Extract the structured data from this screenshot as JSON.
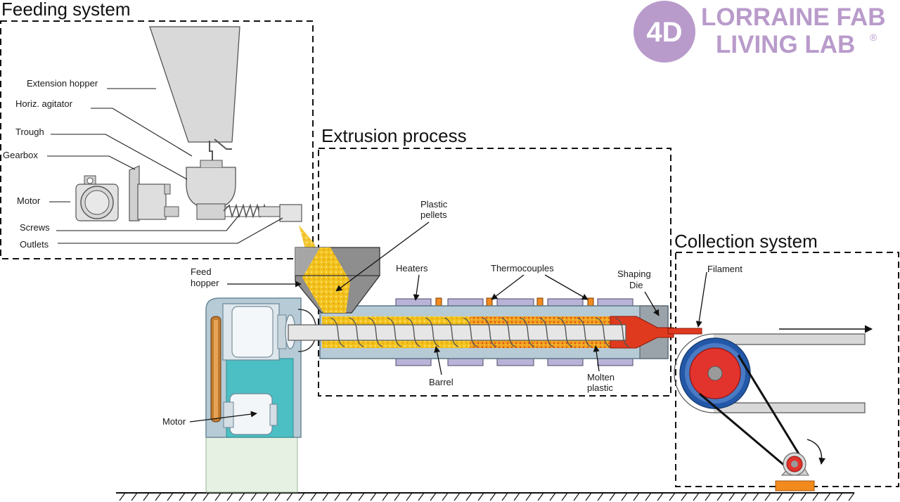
{
  "logo": {
    "mark": "4D",
    "line1": "LORRAINE FAB",
    "line2": "LIVING LAB",
    "registered": "®",
    "color": "#b99bcb"
  },
  "sections": {
    "feeding": "Feeding system",
    "extrusion": "Extrusion process",
    "collection": "Collection system"
  },
  "feeding_labels": {
    "extension_hopper": "Extension hopper",
    "horiz_agitator": "Horiz. agitator",
    "trough": "Trough",
    "gearbox": "Gearbox",
    "motor": "Motor",
    "screws": "Screws",
    "outlets": "Outlets"
  },
  "machine_labels": {
    "feed_hopper": [
      "Feed",
      "hopper"
    ],
    "plastic_pellets": [
      "Plastic",
      "pellets"
    ],
    "heaters": "Heaters",
    "thermocouples": "Thermocouples",
    "shaping_die": [
      "Shaping",
      "Die"
    ],
    "filament": "Filament",
    "barrel": "Barrel",
    "molten_plastic": [
      "Molten",
      "plastic"
    ],
    "motor": "Motor"
  },
  "colors": {
    "pellets": "#f3c21c",
    "molten": "#e03a1e",
    "frame": "#b7cbd6",
    "motor_teal": "#4bbfc4",
    "heater": "#b9b3d8",
    "thermocouple": "#f28a1e",
    "wheel_blue": "#2358a8",
    "wheel_red": "#e2332c"
  }
}
